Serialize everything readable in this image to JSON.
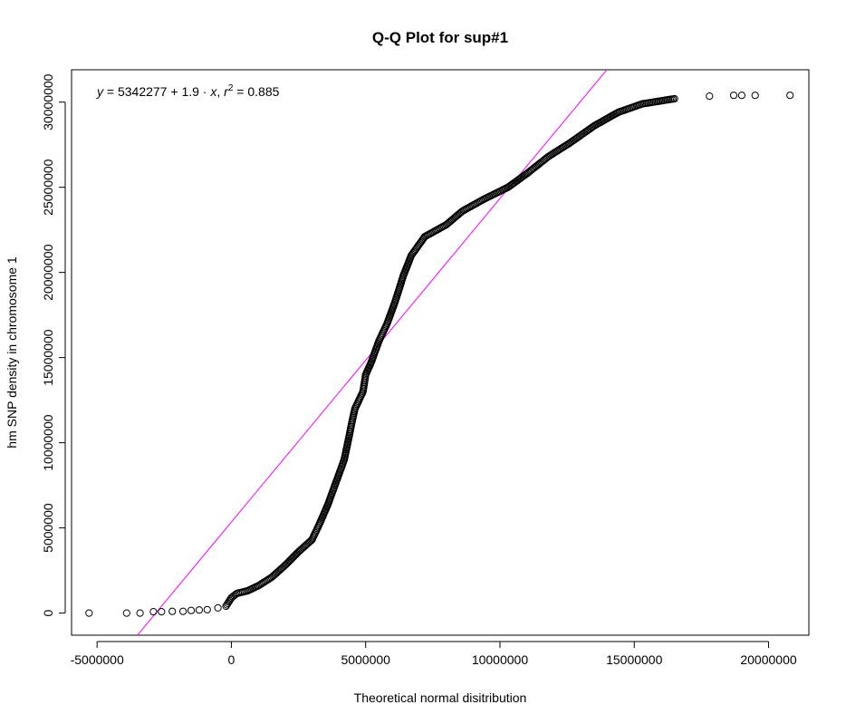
{
  "chart_data": {
    "type": "scatter",
    "title": "Q-Q Plot for sup#1",
    "xlabel": "Theoretical normal disitribution",
    "ylabel": "hm SNP density in chromosome 1",
    "xlim": [
      -5950000,
      21500000
    ],
    "ylim": [
      -1300000,
      31900000
    ],
    "xticks": [
      -5000000,
      0,
      5000000,
      10000000,
      15000000,
      20000000
    ],
    "xtick_labels": [
      "-5000000",
      "0",
      "5000000",
      "10000000",
      "15000000",
      "20000000"
    ],
    "yticks": [
      0,
      5000000,
      10000000,
      15000000,
      20000000,
      25000000,
      30000000
    ],
    "ytick_labels": [
      "0",
      "5000000",
      "10000000",
      "15000000",
      "20000000",
      "25000000",
      "30000000"
    ],
    "equation": {
      "y_var": "y",
      "intercept_text": "5342277",
      "slope_text": "1.9",
      "x_var": "x",
      "r2_label": "r",
      "r2_exp": "2",
      "r2_value": "0.885"
    },
    "fit_line": {
      "intercept": 5342277,
      "slope": 1.9,
      "color": "#ff00ff"
    },
    "point_style": {
      "shape": "open-circle",
      "color": "#000000"
    },
    "quantile_points": [
      [
        -5300000,
        0
      ],
      [
        -3900000,
        0
      ],
      [
        -3400000,
        0
      ],
      [
        -2900000,
        80000
      ],
      [
        -2600000,
        80000
      ],
      [
        -2200000,
        100000
      ],
      [
        -1800000,
        100000
      ],
      [
        -1500000,
        150000
      ],
      [
        -1200000,
        180000
      ],
      [
        -900000,
        200000
      ],
      [
        -500000,
        300000
      ],
      [
        -200000,
        400000
      ],
      [
        0,
        900000
      ],
      [
        200000,
        1150000
      ],
      [
        600000,
        1300000
      ],
      [
        1000000,
        1600000
      ],
      [
        1500000,
        2100000
      ],
      [
        2000000,
        2800000
      ],
      [
        2500000,
        3600000
      ],
      [
        3000000,
        4300000
      ],
      [
        3300000,
        5300000
      ],
      [
        3600000,
        6400000
      ],
      [
        3900000,
        7700000
      ],
      [
        4200000,
        9000000
      ],
      [
        4400000,
        10500000
      ],
      [
        4500000,
        11300000
      ],
      [
        4600000,
        12000000
      ],
      [
        4900000,
        13000000
      ],
      [
        5000000,
        14000000
      ],
      [
        5200000,
        14700000
      ],
      [
        5500000,
        16000000
      ],
      [
        5800000,
        17000000
      ],
      [
        6100000,
        18300000
      ],
      [
        6400000,
        19800000
      ],
      [
        6700000,
        21000000
      ],
      [
        7200000,
        22100000
      ],
      [
        8000000,
        22800000
      ],
      [
        8600000,
        23600000
      ],
      [
        9400000,
        24300000
      ],
      [
        10300000,
        25000000
      ],
      [
        11000000,
        25800000
      ],
      [
        11800000,
        26800000
      ],
      [
        12600000,
        27600000
      ],
      [
        13500000,
        28600000
      ],
      [
        14400000,
        29400000
      ],
      [
        15300000,
        29900000
      ],
      [
        16500000,
        30200000
      ],
      [
        17800000,
        30350000
      ],
      [
        18700000,
        30400000
      ],
      [
        19000000,
        30400000
      ],
      [
        19500000,
        30400000
      ],
      [
        20800000,
        30400000
      ]
    ]
  }
}
